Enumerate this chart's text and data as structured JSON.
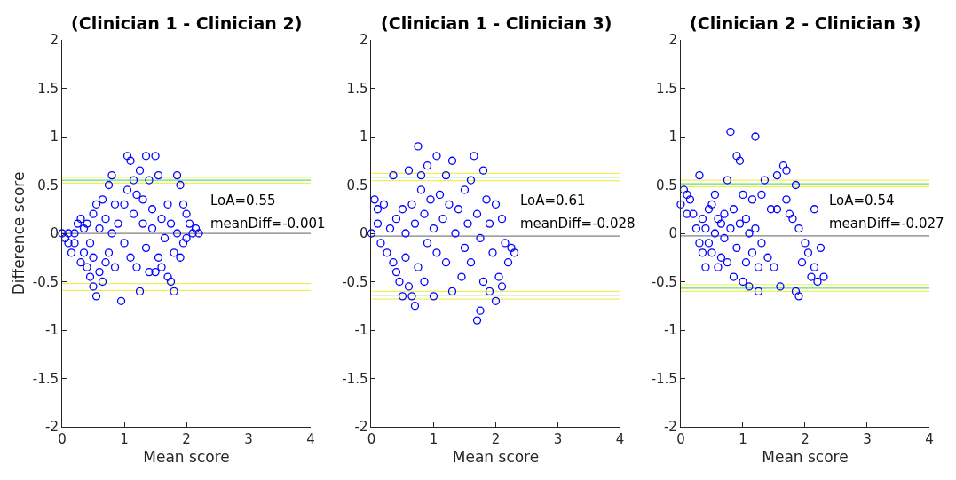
{
  "chart_data": [
    {
      "type": "scatter",
      "title": "(Clinician 1 - Clinician 2)",
      "xlabel": "Mean score",
      "ylabel": "Difference score",
      "xlim": [
        0,
        4
      ],
      "xticks": [
        0,
        1,
        2,
        3,
        4
      ],
      "ylim": [
        -2,
        2
      ],
      "yticks": [
        -2,
        -1.5,
        -1,
        -0.5,
        0,
        0.5,
        1,
        1.5,
        2
      ],
      "marker": "circle",
      "annotations": [
        "LoA=0.55",
        "meanDiff=-0.001"
      ],
      "ref_lines": [
        {
          "axis": "y",
          "value": -0.001,
          "color": "#808080"
        },
        {
          "axis": "y",
          "value": 0.55,
          "color": "#66dd66"
        },
        {
          "axis": "y",
          "value": 0.58,
          "color": "#f0ee5a"
        },
        {
          "axis": "y",
          "value": 0.52,
          "color": "#f0ee5a"
        },
        {
          "axis": "y",
          "value": -0.555,
          "color": "#66dd66"
        },
        {
          "axis": "y",
          "value": -0.52,
          "color": "#f0ee5a"
        },
        {
          "axis": "y",
          "value": -0.59,
          "color": "#f0ee5a"
        }
      ],
      "series": [
        {
          "color": "#0000ff",
          "x": [
            0,
            0.05,
            0.1,
            0.1,
            0.15,
            0.2,
            0.2,
            0.25,
            0.3,
            0.3,
            0.35,
            0.35,
            0.4,
            0.4,
            0.45,
            0.45,
            0.5,
            0.5,
            0.5,
            0.55,
            0.55,
            0.6,
            0.6,
            0.65,
            0.65,
            0.7,
            0.7,
            0.75,
            0.75,
            0.8,
            0.8,
            0.85,
            0.85,
            0.9,
            0.95,
            1.0,
            1.0,
            1.05,
            1.05,
            1.1,
            1.1,
            1.15,
            1.15,
            1.2,
            1.2,
            1.25,
            1.25,
            1.3,
            1.3,
            1.35,
            1.35,
            1.4,
            1.4,
            1.45,
            1.45,
            1.5,
            1.5,
            1.55,
            1.55,
            1.6,
            1.6,
            1.65,
            1.7,
            1.7,
            1.75,
            1.75,
            1.8,
            1.8,
            1.85,
            1.85,
            1.9,
            1.9,
            1.95,
            1.95,
            2.0,
            2.0,
            2.05,
            2.1,
            2.15,
            2.2
          ],
          "values": [
            0,
            -0.05,
            -0.1,
            0,
            -0.2,
            0,
            -0.1,
            0.1,
            -0.3,
            0.15,
            -0.2,
            0.05,
            -0.35,
            0.1,
            -0.45,
            -0.1,
            -0.55,
            0.2,
            -0.25,
            -0.65,
            0.3,
            -0.4,
            0.05,
            -0.5,
            0.35,
            -0.3,
            0.15,
            -0.2,
            0.5,
            0.6,
            0,
            0.3,
            -0.35,
            0.1,
            -0.7,
            0.3,
            -0.1,
            0.45,
            0.8,
            0.75,
            -0.25,
            0.55,
            0.2,
            0.4,
            -0.35,
            -0.6,
            0.65,
            0.1,
            0.35,
            0.8,
            -0.15,
            0.55,
            -0.4,
            0.25,
            0.05,
            0.8,
            -0.4,
            0.6,
            -0.25,
            0.15,
            -0.35,
            -0.05,
            -0.45,
            0.3,
            -0.5,
            0.1,
            -0.6,
            -0.2,
            0.6,
            0,
            0.5,
            -0.25,
            0.3,
            -0.1,
            0.2,
            -0.05,
            0.1,
            0,
            0.05,
            0
          ]
        }
      ]
    },
    {
      "type": "scatter",
      "title": "(Clinician 1 - Clinician 3)",
      "xlabel": "Mean score",
      "xlim": [
        0,
        4
      ],
      "xticks": [
        0,
        1,
        2,
        3,
        4
      ],
      "ylim": [
        -2,
        2
      ],
      "yticks": [
        -2,
        -1.5,
        -1,
        -0.5,
        0,
        0.5,
        1,
        1.5,
        2
      ],
      "marker": "circle",
      "annotations": [
        "LoA=0.61",
        "meanDiff=-0.028"
      ],
      "ref_lines": [
        {
          "axis": "y",
          "value": -0.028,
          "color": "#808080"
        },
        {
          "axis": "y",
          "value": 0.582,
          "color": "#66dd66"
        },
        {
          "axis": "y",
          "value": 0.62,
          "color": "#f0ee5a"
        },
        {
          "axis": "y",
          "value": 0.545,
          "color": "#f0ee5a"
        },
        {
          "axis": "y",
          "value": -0.638,
          "color": "#66dd66"
        },
        {
          "axis": "y",
          "value": -0.6,
          "color": "#f0ee5a"
        },
        {
          "axis": "y",
          "value": -0.68,
          "color": "#f0ee5a"
        }
      ],
      "series": [
        {
          "color": "#0000ff",
          "x": [
            0,
            0.05,
            0.1,
            0.1,
            0.15,
            0.2,
            0.25,
            0.3,
            0.35,
            0.35,
            0.4,
            0.4,
            0.45,
            0.5,
            0.5,
            0.55,
            0.55,
            0.6,
            0.6,
            0.65,
            0.65,
            0.7,
            0.7,
            0.75,
            0.75,
            0.8,
            0.8,
            0.85,
            0.85,
            0.9,
            0.9,
            0.95,
            1.0,
            1.0,
            1.05,
            1.05,
            1.1,
            1.15,
            1.2,
            1.2,
            1.25,
            1.3,
            1.3,
            1.35,
            1.4,
            1.45,
            1.5,
            1.5,
            1.55,
            1.6,
            1.6,
            1.65,
            1.7,
            1.7,
            1.75,
            1.75,
            1.8,
            1.8,
            1.85,
            1.9,
            1.9,
            1.95,
            2.0,
            2.0,
            2.05,
            2.1,
            2.1,
            2.15,
            2.2,
            2.25,
            2.3
          ],
          "values": [
            0,
            0.35,
            0.25,
            0.1,
            -0.1,
            0.3,
            -0.2,
            0.05,
            -0.3,
            0.6,
            -0.4,
            0.15,
            -0.5,
            0.25,
            -0.65,
            0,
            -0.25,
            0.65,
            -0.55,
            0.3,
            -0.65,
            -0.75,
            0.1,
            0.9,
            -0.35,
            0.45,
            0.6,
            0.2,
            -0.5,
            0.7,
            -0.1,
            0.35,
            -0.65,
            0.05,
            0.8,
            -0.2,
            0.4,
            0.15,
            -0.3,
            0.6,
            0.3,
            -0.6,
            0.75,
            0,
            0.25,
            -0.45,
            0.45,
            -0.15,
            0.1,
            0.55,
            -0.3,
            0.8,
            -0.9,
            0.2,
            -0.8,
            -0.05,
            0.65,
            -0.5,
            0.35,
            -0.6,
            0.1,
            -0.2,
            -0.7,
            0.3,
            -0.45,
            0.15,
            -0.55,
            -0.1,
            -0.3,
            -0.15,
            -0.2
          ]
        }
      ]
    },
    {
      "type": "scatter",
      "title": "(Clinician 2 - Clinician 3)",
      "xlabel": "Mean score",
      "xlim": [
        0,
        4
      ],
      "xticks": [
        0,
        1,
        2,
        3,
        4
      ],
      "ylim": [
        -2,
        2
      ],
      "yticks": [
        -2,
        -1.5,
        -1,
        -0.5,
        0,
        0.5,
        1,
        1.5,
        2
      ],
      "marker": "circle",
      "annotations": [
        "LoA=0.54",
        "meanDiff=-0.027"
      ],
      "ref_lines": [
        {
          "axis": "y",
          "value": -0.027,
          "color": "#808080"
        },
        {
          "axis": "y",
          "value": 0.513,
          "color": "#66dd66"
        },
        {
          "axis": "y",
          "value": 0.55,
          "color": "#f0ee5a"
        },
        {
          "axis": "y",
          "value": 0.48,
          "color": "#f0ee5a"
        },
        {
          "axis": "y",
          "value": -0.567,
          "color": "#66dd66"
        },
        {
          "axis": "y",
          "value": -0.53,
          "color": "#f0ee5a"
        },
        {
          "axis": "y",
          "value": -0.6,
          "color": "#f0ee5a"
        }
      ],
      "series": [
        {
          "color": "#0000ff",
          "x": [
            0,
            0.05,
            0.1,
            0.1,
            0.15,
            0.2,
            0.25,
            0.3,
            0.3,
            0.35,
            0.35,
            0.4,
            0.4,
            0.45,
            0.45,
            0.5,
            0.5,
            0.55,
            0.55,
            0.6,
            0.6,
            0.65,
            0.65,
            0.7,
            0.7,
            0.75,
            0.75,
            0.8,
            0.8,
            0.85,
            0.85,
            0.9,
            0.9,
            0.95,
            0.95,
            1.0,
            1.0,
            1.05,
            1.05,
            1.1,
            1.1,
            1.15,
            1.15,
            1.2,
            1.2,
            1.25,
            1.25,
            1.3,
            1.3,
            1.35,
            1.4,
            1.45,
            1.5,
            1.55,
            1.55,
            1.6,
            1.65,
            1.7,
            1.7,
            1.75,
            1.8,
            1.85,
            1.85,
            1.9,
            1.9,
            1.95,
            2.0,
            2.05,
            2.1,
            2.15,
            2.15,
            2.2,
            2.25,
            2.3
          ],
          "values": [
            0.3,
            0.45,
            0.4,
            0.2,
            0.35,
            0.2,
            0.05,
            -0.1,
            0.6,
            -0.2,
            0.15,
            -0.35,
            0.05,
            0.25,
            -0.1,
            0.3,
            -0.2,
            0.4,
            0,
            -0.35,
            0.15,
            0.1,
            -0.25,
            0.2,
            -0.05,
            0.55,
            -0.3,
            1.05,
            0.05,
            -0.45,
            0.25,
            0.8,
            -0.15,
            0.75,
            0.1,
            -0.5,
            0.4,
            -0.3,
            0.15,
            -0.55,
            0,
            0.35,
            -0.2,
            1.0,
            0.05,
            -0.6,
            -0.35,
            0.4,
            -0.1,
            0.55,
            -0.25,
            0.25,
            -0.35,
            0.6,
            0.25,
            -0.55,
            0.7,
            0.65,
            0.35,
            0.2,
            0.15,
            -0.6,
            0.5,
            -0.65,
            0.05,
            -0.3,
            -0.1,
            -0.2,
            -0.45,
            0.25,
            -0.35,
            -0.5,
            -0.15,
            -0.45
          ]
        }
      ]
    }
  ]
}
